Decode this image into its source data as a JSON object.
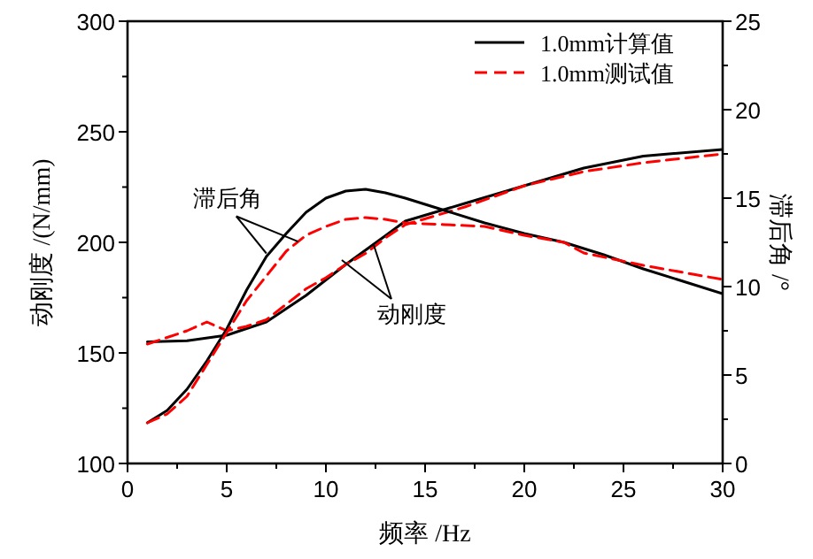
{
  "chart_data": {
    "type": "line",
    "xlabel": "频率 /Hz",
    "ylabel": "动刚度 /(N/mm)",
    "y2label": "滞后角 /°",
    "xlim": [
      0,
      30
    ],
    "xticks": [
      0,
      5,
      10,
      15,
      20,
      25,
      30
    ],
    "ylim": [
      100,
      300
    ],
    "yticks": [
      100,
      150,
      200,
      250,
      300
    ],
    "y2lim": [
      0,
      25
    ],
    "y2ticks": [
      0,
      5,
      10,
      15,
      20,
      25
    ],
    "grid": false,
    "legend": "top right",
    "marker": "none",
    "series": [
      {
        "name": "1.0mm计算值",
        "color": "#000000",
        "line_style": "solid",
        "x": [
          1,
          3,
          5,
          7,
          9,
          11,
          13,
          14,
          17,
          20,
          23,
          26,
          30
        ],
        "values": [
          155,
          155.5,
          158,
          164,
          176,
          190,
          203,
          209.6,
          217.6,
          225.6,
          233.6,
          239,
          242
        ]
      },
      {
        "name": "1.0mm测试值",
        "color": "#ff0000",
        "line_style": "dashed",
        "x": [
          1,
          2,
          3,
          4,
          5,
          6,
          7,
          8,
          9,
          10,
          11,
          12,
          13,
          14,
          17,
          20,
          23,
          26,
          30
        ],
        "values": [
          154,
          157,
          160,
          164,
          160,
          162,
          165,
          172,
          179,
          184,
          190,
          195,
          202,
          208,
          216,
          225.6,
          232,
          236,
          240
        ]
      },
      {
        "color": "#000000",
        "line_style": "solid",
        "axis": "y2",
        "x": [
          1,
          2,
          3,
          4,
          5,
          6,
          7,
          8,
          9,
          10,
          11,
          12,
          13,
          14,
          16,
          18,
          20,
          22,
          24,
          26,
          28,
          30
        ],
        "values": [
          2.3,
          3.0,
          4.2,
          5.8,
          7.6,
          9.8,
          11.7,
          13.0,
          14.2,
          15.0,
          15.4,
          15.5,
          15.3,
          15.0,
          14.3,
          13.6,
          13.0,
          12.5,
          11.8,
          11.0,
          10.3,
          9.6
        ]
      },
      {
        "color": "#ff0000",
        "line_style": "dashed",
        "axis": "y2",
        "x": [
          1,
          2,
          3,
          4,
          5,
          6,
          7,
          8,
          9,
          10,
          11,
          12,
          13,
          14,
          16,
          18,
          20,
          22,
          23,
          26,
          30
        ],
        "values": [
          2.3,
          2.8,
          3.8,
          5.6,
          7.4,
          9.2,
          10.6,
          12.0,
          12.9,
          13.4,
          13.8,
          13.9,
          13.8,
          13.6,
          13.5,
          13.4,
          12.9,
          12.5,
          11.9,
          11.2,
          10.4
        ]
      }
    ],
    "annotations": [
      {
        "text": "滞后角",
        "x": 7,
        "y": 195
      },
      {
        "text": "动刚度",
        "x": 10.8,
        "y": 192
      }
    ]
  }
}
